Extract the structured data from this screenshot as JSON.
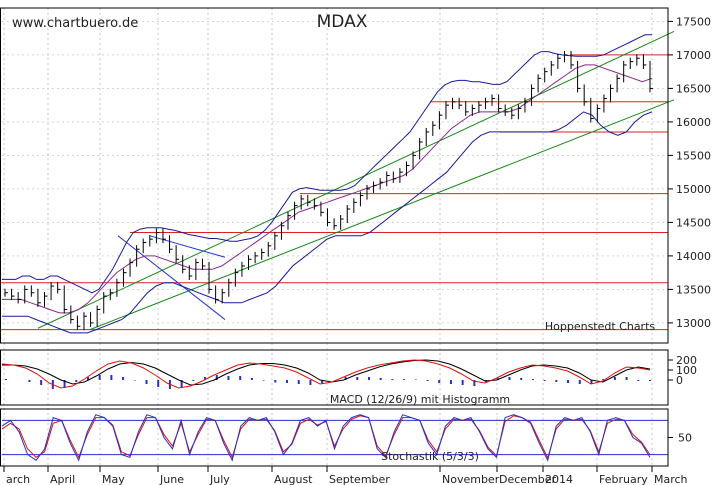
{
  "chart_data": {
    "type": "line",
    "title": "MDAX",
    "watermark": "www.chartbuero.de",
    "credit": "Hoppenstedt Charts",
    "x_labels": [
      "arch",
      "April",
      "May",
      "June",
      "July",
      "August",
      "September",
      "November",
      "December",
      "2014",
      "February",
      "March"
    ],
    "price_panel": {
      "y_ticks": [
        13000,
        13500,
        14000,
        14500,
        15000,
        15500,
        16000,
        16500,
        17000,
        17500
      ],
      "ylim": [
        12700,
        17700
      ],
      "series": [
        {
          "name": "MDAX",
          "values": [
            13450,
            13400,
            13350,
            13500,
            13450,
            13300,
            13400,
            13550,
            13500,
            13200,
            13050,
            12950,
            13100,
            13000,
            13200,
            13400,
            13450,
            13600,
            13750,
            13900,
            14100,
            14200,
            14250,
            14350,
            14250,
            14100,
            13950,
            13800,
            13700,
            13900,
            13850,
            13500,
            13350,
            13450,
            13600,
            13750,
            13850,
            13950,
            14000,
            14050,
            14150,
            14300,
            14450,
            14600,
            14750,
            14850,
            14800,
            14750,
            14650,
            14500,
            14450,
            14550,
            14700,
            14800,
            14900,
            15000,
            15050,
            15100,
            15200,
            15150,
            15250,
            15350,
            15500,
            15700,
            15850,
            15950,
            16100,
            16250,
            16300,
            16250,
            16150,
            16200,
            16250,
            16300,
            16350,
            16200,
            16150,
            16100,
            16200,
            16300,
            16500,
            16650,
            16750,
            16850,
            16950,
            17000,
            16850,
            16500,
            16300,
            16050,
            16200,
            16350,
            16500,
            16650,
            16850,
            16900,
            16950,
            16850,
            16500
          ]
        },
        {
          "name": "Bollinger upper",
          "values": [
            13650,
            13650,
            13650,
            13700,
            13700,
            13650,
            13650,
            13700,
            13700,
            13650,
            13600,
            13550,
            13500,
            13450,
            13500,
            13650,
            13800,
            14000,
            14200,
            14350,
            14400,
            14420,
            14420,
            14420,
            14400,
            14380,
            14350,
            14320,
            14300,
            14280,
            14260,
            14260,
            14240,
            14220,
            14220,
            14240,
            14260,
            14300,
            14380,
            14500,
            14650,
            14800,
            14950,
            15000,
            15020,
            15000,
            14980,
            14980,
            14980,
            14980,
            15000,
            15050,
            15150,
            15250,
            15350,
            15450,
            15550,
            15650,
            15750,
            15850,
            16000,
            16150,
            16300,
            16450,
            16550,
            16600,
            16620,
            16620,
            16600,
            16600,
            16580,
            16560,
            16560,
            16600,
            16700,
            16800,
            16900,
            17000,
            17050,
            17050,
            17020,
            17000,
            16990,
            16980,
            16980,
            16980,
            16980,
            17000,
            17050,
            17100,
            17150,
            17200,
            17250,
            17300,
            17300
          ]
        },
        {
          "name": "Bollinger lower",
          "values": [
            13100,
            13100,
            13100,
            13100,
            13050,
            13000,
            12950,
            12900,
            12850,
            12850,
            12850,
            12900,
            12950,
            13000,
            13050,
            13150,
            13300,
            13450,
            13550,
            13600,
            13600,
            13550,
            13500,
            13450,
            13400,
            13350,
            13300,
            13300,
            13300,
            13350,
            13400,
            13450,
            13550,
            13700,
            13850,
            13950,
            14050,
            14150,
            14250,
            14300,
            14300,
            14300,
            14300,
            14350,
            14450,
            14550,
            14650,
            14750,
            14850,
            14950,
            15050,
            15150,
            15250,
            15400,
            15550,
            15700,
            15800,
            15850,
            15850,
            15850,
            15850,
            15850,
            15850,
            15850,
            15850,
            15880,
            15950,
            16050,
            16150,
            16100,
            15950,
            15850,
            15800,
            15850,
            16000,
            16100,
            16150
          ]
        },
        {
          "name": "Moving average",
          "values": [
            13350,
            13350,
            13350,
            13300,
            13250,
            13200,
            13150,
            13150,
            13200,
            13300,
            13450,
            13600,
            13750,
            13850,
            13950,
            14000,
            14000,
            13950,
            13900,
            13850,
            13800,
            13800,
            13800,
            13850,
            13950,
            14050,
            14150,
            14250,
            14350,
            14450,
            14550,
            14650,
            14700,
            14750,
            14800,
            14850,
            14900,
            14950,
            15000,
            15050,
            15100,
            15150,
            15200,
            15300,
            15450,
            15600,
            15750,
            15900,
            16000,
            16100,
            16150,
            16150,
            16150,
            16150,
            16200,
            16300,
            16400,
            16500,
            16600,
            16700,
            16800,
            16850,
            16850,
            16800,
            16750,
            16700,
            16650,
            16600,
            16650
          ]
        }
      ],
      "horizontal_lines": [
        13600,
        12900,
        14350,
        14930,
        15850,
        16300,
        17000
      ],
      "trend_lines": [
        {
          "name": "long uptrend",
          "from": [
            "May",
            12900
          ],
          "to": [
            "March",
            16330
          ]
        },
        {
          "name": "upper uptrend",
          "from": [
            "April",
            12920
          ],
          "to": [
            "March",
            17350
          ]
        }
      ]
    },
    "macd_panel": {
      "label": "MACD (12/26/9) mit Histogramm",
      "y_ticks": [
        200,
        100,
        0
      ],
      "ylim": [
        -250,
        300
      ],
      "series": [
        {
          "name": "MACD",
          "values": [
            160,
            150,
            120,
            60,
            -30,
            -80,
            -60,
            10,
            90,
            160,
            190,
            170,
            120,
            50,
            -30,
            -80,
            -60,
            -10,
            50,
            100,
            150,
            170,
            160,
            140,
            120,
            80,
            20,
            -40,
            -20,
            30,
            80,
            120,
            150,
            170,
            190,
            200,
            190,
            160,
            120,
            60,
            -10,
            -30,
            20,
            80,
            120,
            150,
            140,
            120,
            90,
            30,
            -40,
            -10,
            70,
            130,
            120,
            100
          ]
        },
        {
          "name": "Signal",
          "values": [
            150,
            150,
            140,
            110,
            60,
            0,
            -40,
            -20,
            40,
            110,
            160,
            175,
            160,
            120,
            60,
            0,
            -50,
            -40,
            0,
            60,
            110,
            150,
            165,
            165,
            150,
            120,
            70,
            0,
            -20,
            0,
            50,
            90,
            130,
            160,
            180,
            195,
            200,
            190,
            160,
            110,
            50,
            -10,
            0,
            50,
            100,
            140,
            150,
            140,
            120,
            70,
            0,
            -20,
            40,
            100,
            130,
            110
          ]
        }
      ],
      "histogram": [
        10,
        0,
        -20,
        -50,
        -90,
        -80,
        -20,
        30,
        50,
        50,
        30,
        -5,
        -40,
        -70,
        -90,
        -80,
        -10,
        30,
        50,
        40,
        40,
        20,
        -5,
        -25,
        -30,
        -40,
        -50,
        -40,
        0,
        30,
        30,
        30,
        20,
        10,
        10,
        5,
        -10,
        -30,
        -40,
        -50,
        -60,
        -20,
        20,
        30,
        20,
        10,
        -10,
        -20,
        -30,
        -40,
        -40,
        10,
        30,
        30,
        -10,
        -10
      ]
    },
    "stochastic_panel": {
      "label": "Stochastik (5/3/3)",
      "y_ticks": [
        50
      ],
      "ylim": [
        0,
        100
      ],
      "levels": [
        80,
        20
      ],
      "series": [
        {
          "name": "%K",
          "values": [
            70,
            80,
            60,
            20,
            10,
            30,
            85,
            80,
            40,
            10,
            60,
            90,
            85,
            70,
            20,
            15,
            60,
            90,
            85,
            50,
            30,
            80,
            20,
            60,
            85,
            80,
            40,
            10,
            70,
            85,
            80,
            85,
            60,
            20,
            40,
            80,
            85,
            70,
            80,
            30,
            70,
            85,
            90,
            85,
            30,
            15,
            60,
            90,
            85,
            80,
            40,
            20,
            70,
            85,
            80,
            85,
            60,
            30,
            15,
            85,
            90,
            85,
            75,
            40,
            10,
            70,
            85,
            80,
            85,
            60,
            20,
            80,
            85,
            80,
            50,
            40,
            15
          ]
        },
        {
          "name": "%D",
          "values": [
            65,
            75,
            65,
            30,
            15,
            25,
            75,
            80,
            45,
            15,
            55,
            85,
            85,
            72,
            25,
            18,
            55,
            85,
            85,
            55,
            35,
            75,
            25,
            55,
            82,
            80,
            45,
            15,
            65,
            82,
            80,
            82,
            62,
            25,
            38,
            75,
            82,
            72,
            78,
            35,
            65,
            82,
            88,
            85,
            35,
            18,
            55,
            85,
            85,
            80,
            45,
            25,
            65,
            82,
            80,
            82,
            62,
            33,
            18,
            78,
            88,
            85,
            77,
            45,
            14,
            65,
            82,
            80,
            82,
            62,
            25,
            75,
            82,
            80,
            55,
            42,
            20
          ]
        }
      ]
    }
  }
}
